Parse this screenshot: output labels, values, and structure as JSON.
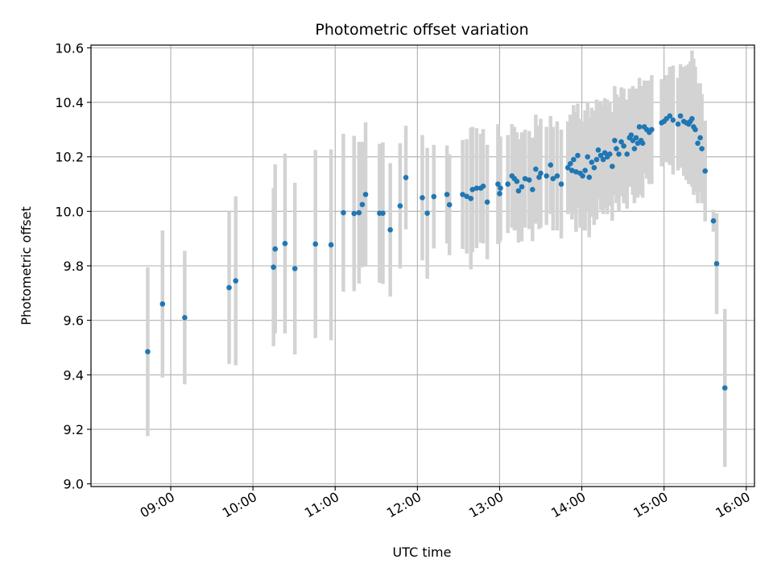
{
  "chart_data": {
    "type": "scatter",
    "title": "Photometric offset variation",
    "xlabel": "UTC time",
    "ylabel": "Photometric offset",
    "grid": true,
    "x_unit": "hours UTC",
    "xlim": [
      8.03,
      16.1
    ],
    "ylim": [
      8.99,
      10.61
    ],
    "x_ticks": [
      9,
      10,
      11,
      12,
      13,
      14,
      15,
      16
    ],
    "x_tick_labels": [
      "09:00",
      "10:00",
      "11:00",
      "12:00",
      "13:00",
      "14:00",
      "15:00",
      "16:00"
    ],
    "y_ticks": [
      9.0,
      9.2,
      9.4,
      9.6,
      9.8,
      10.0,
      10.2,
      10.4,
      10.6
    ],
    "y_tick_labels": [
      "9.0",
      "9.2",
      "9.4",
      "9.6",
      "9.8",
      "10.0",
      "10.2",
      "10.4",
      "10.6"
    ],
    "point_color": "#1f77b4",
    "errorbar_color": "#d3d3d3",
    "series": [
      {
        "points": [
          [
            8.72,
            9.485,
            0.31
          ],
          [
            8.9,
            9.66,
            0.27
          ],
          [
            9.17,
            9.61,
            0.245
          ],
          [
            9.71,
            9.72,
            0.28
          ],
          [
            9.79,
            9.745,
            0.31
          ],
          [
            10.25,
            9.795,
            0.29
          ],
          [
            10.27,
            9.862,
            0.31
          ],
          [
            10.39,
            9.882,
            0.33
          ],
          [
            10.51,
            9.79,
            0.315
          ],
          [
            10.76,
            9.88,
            0.345
          ],
          [
            10.95,
            9.877,
            0.35
          ],
          [
            11.1,
            9.995,
            0.29
          ],
          [
            11.23,
            9.992,
            0.285
          ],
          [
            11.29,
            9.995,
            0.26
          ],
          [
            11.33,
            10.025,
            0.23
          ],
          [
            11.37,
            10.062,
            0.265
          ],
          [
            11.54,
            9.993,
            0.255
          ],
          [
            11.58,
            9.993,
            0.26
          ],
          [
            11.67,
            9.932,
            0.245
          ],
          [
            11.79,
            10.02,
            0.23
          ],
          [
            11.86,
            10.124,
            0.19
          ],
          [
            12.06,
            10.05,
            0.23
          ],
          [
            12.12,
            9.993,
            0.24
          ],
          [
            12.2,
            10.054,
            0.19
          ],
          [
            12.36,
            10.062,
            0.18
          ],
          [
            12.39,
            10.024,
            0.185
          ],
          [
            12.55,
            10.062,
            0.2
          ],
          [
            12.6,
            10.055,
            0.21
          ],
          [
            12.65,
            10.047,
            0.26
          ],
          [
            12.67,
            10.08,
            0.23
          ],
          [
            12.72,
            10.085,
            0.22
          ],
          [
            12.77,
            10.085,
            0.2
          ],
          [
            12.8,
            10.092,
            0.21
          ],
          [
            12.85,
            10.034,
            0.21
          ],
          [
            12.98,
            10.1,
            0.22
          ],
          [
            13.0,
            10.065,
            0.18
          ],
          [
            13.01,
            10.085,
            0.19
          ],
          [
            13.1,
            10.1,
            0.18
          ],
          [
            13.15,
            10.13,
            0.19
          ],
          [
            13.18,
            10.12,
            0.19
          ],
          [
            13.21,
            10.11,
            0.18
          ],
          [
            13.23,
            10.075,
            0.19
          ],
          [
            13.27,
            10.09,
            0.2
          ],
          [
            13.31,
            10.12,
            0.18
          ],
          [
            13.36,
            10.115,
            0.18
          ],
          [
            13.4,
            10.08,
            0.19
          ],
          [
            13.44,
            10.155,
            0.2
          ],
          [
            13.48,
            10.125,
            0.19
          ],
          [
            13.5,
            10.14,
            0.2
          ],
          [
            13.57,
            10.13,
            0.18
          ],
          [
            13.62,
            10.17,
            0.18
          ],
          [
            13.65,
            10.12,
            0.19
          ],
          [
            13.7,
            10.13,
            0.2
          ],
          [
            13.75,
            10.1,
            0.2
          ],
          [
            13.83,
            10.16,
            0.17
          ],
          [
            13.86,
            10.175,
            0.18
          ],
          [
            13.88,
            10.15,
            0.18
          ],
          [
            13.9,
            10.19,
            0.2
          ],
          [
            13.93,
            10.145,
            0.22
          ],
          [
            13.95,
            10.205,
            0.19
          ],
          [
            13.98,
            10.14,
            0.2
          ],
          [
            14.01,
            10.13,
            0.2
          ],
          [
            14.04,
            10.15,
            0.22
          ],
          [
            14.07,
            10.2,
            0.2
          ],
          [
            14.09,
            10.125,
            0.22
          ],
          [
            14.12,
            10.18,
            0.2
          ],
          [
            14.15,
            10.16,
            0.21
          ],
          [
            14.18,
            10.19,
            0.22
          ],
          [
            14.2,
            10.225,
            0.18
          ],
          [
            14.23,
            10.205,
            0.2
          ],
          [
            14.26,
            10.19,
            0.2
          ],
          [
            14.28,
            10.215,
            0.2
          ],
          [
            14.31,
            10.2,
            0.21
          ],
          [
            14.34,
            10.21,
            0.19
          ],
          [
            14.37,
            10.165,
            0.2
          ],
          [
            14.4,
            10.26,
            0.2
          ],
          [
            14.42,
            10.23,
            0.2
          ],
          [
            14.45,
            10.21,
            0.21
          ],
          [
            14.48,
            10.255,
            0.2
          ],
          [
            14.51,
            10.24,
            0.21
          ],
          [
            14.55,
            10.21,
            0.2
          ],
          [
            14.58,
            10.27,
            0.18
          ],
          [
            14.6,
            10.28,
            0.17
          ],
          [
            14.62,
            10.26,
            0.2
          ],
          [
            14.64,
            10.23,
            0.2
          ],
          [
            14.66,
            10.27,
            0.18
          ],
          [
            14.68,
            10.25,
            0.2
          ],
          [
            14.7,
            10.31,
            0.18
          ],
          [
            14.72,
            10.26,
            0.2
          ],
          [
            14.74,
            10.25,
            0.2
          ],
          [
            14.76,
            10.31,
            0.17
          ],
          [
            14.79,
            10.3,
            0.18
          ],
          [
            14.82,
            10.29,
            0.19
          ],
          [
            14.85,
            10.3,
            0.2
          ],
          [
            14.97,
            10.325,
            0.16
          ],
          [
            15.0,
            10.33,
            0.15
          ],
          [
            15.03,
            10.34,
            0.16
          ],
          [
            15.07,
            10.35,
            0.18
          ],
          [
            15.11,
            10.335,
            0.2
          ],
          [
            15.17,
            10.32,
            0.17
          ],
          [
            15.2,
            10.35,
            0.19
          ],
          [
            15.24,
            10.33,
            0.2
          ],
          [
            15.27,
            10.325,
            0.21
          ],
          [
            15.3,
            10.32,
            0.22
          ],
          [
            15.32,
            10.33,
            0.22
          ],
          [
            15.34,
            10.34,
            0.25
          ],
          [
            15.36,
            10.31,
            0.25
          ],
          [
            15.38,
            10.3,
            0.23
          ],
          [
            15.41,
            10.25,
            0.22
          ],
          [
            15.44,
            10.27,
            0.2
          ],
          [
            15.46,
            10.23,
            0.2
          ],
          [
            15.5,
            10.148,
            0.185
          ],
          [
            15.6,
            9.965,
            0.04
          ],
          [
            15.64,
            9.808,
            0.185
          ],
          [
            15.74,
            9.352,
            0.29
          ]
        ]
      }
    ]
  }
}
